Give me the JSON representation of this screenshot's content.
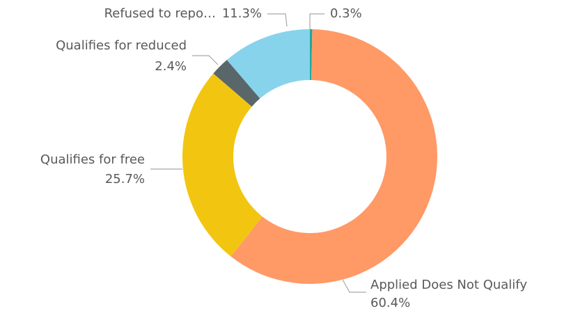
{
  "chart_data": {
    "type": "donut",
    "categories": [
      null,
      "Applied Does Not Qualify",
      "Qualifies for free",
      "Qualifies for reduced",
      "Refused to repo…"
    ],
    "values": [
      0.3,
      60.4,
      25.7,
      2.4,
      11.3
    ],
    "value_labels": [
      "0.3%",
      "60.4%",
      "25.7%",
      "2.4%",
      "11.3%"
    ],
    "colors": [
      "#1fa8a0",
      "#ff9966",
      "#f2c511",
      "#59666a",
      "#87d3ec"
    ]
  }
}
